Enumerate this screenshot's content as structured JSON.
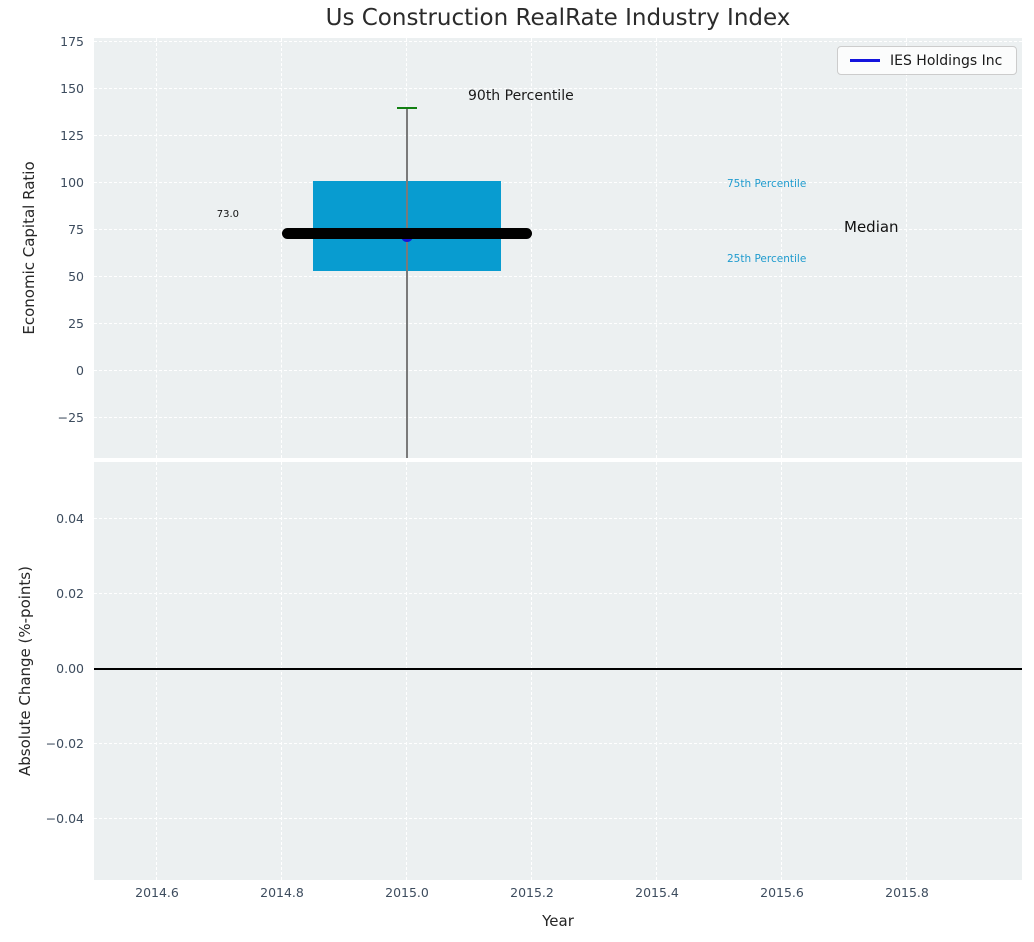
{
  "title": "Us Construction RealRate Industry Index",
  "legend": {
    "label": "IES Holdings Inc"
  },
  "top_axes": {
    "ylabel": "Economic Capital Ratio",
    "yticks": [
      {
        "label": "175",
        "value": 175
      },
      {
        "label": "150",
        "value": 150
      },
      {
        "label": "125",
        "value": 125
      },
      {
        "label": "100",
        "value": 100
      },
      {
        "label": "75",
        "value": 75
      },
      {
        "label": "50",
        "value": 50
      },
      {
        "label": "25",
        "value": 25
      },
      {
        "label": "0",
        "value": 0
      },
      {
        "label": "−25",
        "value": -25
      }
    ]
  },
  "bottom_axes": {
    "ylabel": "Absolute Change (%-points)",
    "xlabel": "Year",
    "yticks": [
      {
        "label": "0.04",
        "value": 0.04
      },
      {
        "label": "0.02",
        "value": 0.02
      },
      {
        "label": "0.00",
        "value": 0
      },
      {
        "label": "−0.02",
        "value": -0.02
      },
      {
        "label": "−0.04",
        "value": -0.04
      }
    ]
  },
  "xticks": [
    {
      "label": "2014.6",
      "value": 2014.6
    },
    {
      "label": "2014.8",
      "value": 2014.8
    },
    {
      "label": "2015.0",
      "value": 2015.0
    },
    {
      "label": "2015.2",
      "value": 2015.2
    },
    {
      "label": "2015.4",
      "value": 2015.4
    },
    {
      "label": "2015.6",
      "value": 2015.6
    },
    {
      "label": "2015.8",
      "value": 2015.8
    }
  ],
  "annotations": {
    "p90_label": "90th Percentile",
    "p75_label": "75th Percentile",
    "median_label": "Median",
    "p25_label": "25th Percentile",
    "median_value_label": "73.0"
  },
  "colors": {
    "plot_bg": "#ecf0f1",
    "grid": "#ffffff",
    "box_fill": "#089cd0",
    "percentile_label": "#1f9bce",
    "whisker_cap_green": "#128012",
    "whisker_line_gray": "#7a7a7a",
    "company_blue": "#1414dd",
    "median_black": "#000000",
    "tick_text": "#3d4c5e"
  },
  "chart_data": [
    {
      "type": "box",
      "title": "Us Construction RealRate Industry Index",
      "ylabel": "Economic Capital Ratio",
      "x": 2015.0,
      "box_width_years": 0.3,
      "median_line_width_years": 0.4,
      "p90": 140,
      "p75": 101,
      "median": 73.0,
      "p25": 53,
      "whisker_low_clipped_at_ylim": true,
      "company_point": {
        "name": "IES Holdings Inc",
        "x": 2015.0,
        "value": 72
      },
      "ylim": [
        -46,
        177
      ],
      "yticks": [
        175,
        150,
        125,
        100,
        75,
        50,
        25,
        0,
        -25
      ],
      "xlim": [
        2014.5,
        2015.99
      ],
      "grid": true,
      "legend": [
        "IES Holdings Inc"
      ],
      "legend_position": "upper right",
      "annotations": [
        "90th Percentile",
        "75th Percentile",
        "Median",
        "25th Percentile",
        "73.0"
      ]
    },
    {
      "type": "line",
      "ylabel": "Absolute Change (%-points)",
      "xlabel": "Year",
      "series": [],
      "zero_reference_line": 0.0,
      "ylim": [
        -0.056,
        0.055
      ],
      "yticks": [
        0.04,
        0.02,
        0.0,
        -0.02,
        -0.04
      ],
      "xticks": [
        2014.6,
        2014.8,
        2015.0,
        2015.2,
        2015.4,
        2015.6,
        2015.8
      ],
      "xlim": [
        2014.5,
        2015.99
      ],
      "grid": true
    }
  ]
}
